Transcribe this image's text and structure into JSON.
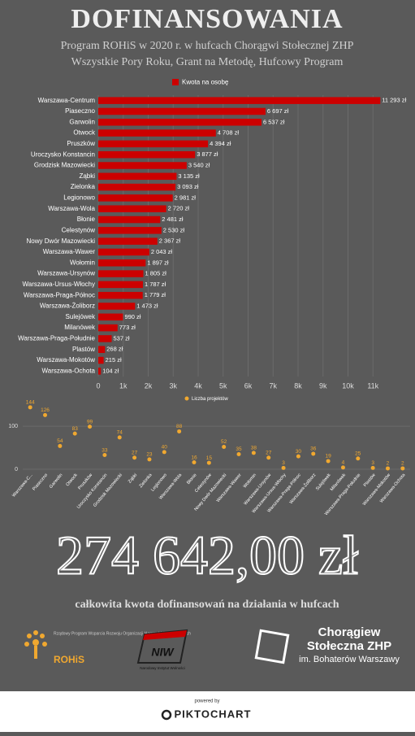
{
  "header": {
    "title": "DOFINANSOWANIA",
    "subtitle_lines": [
      "Program ROHiS w 2020 r. w hufcach Chorągwi Stołecznej ZHP",
      "Wszystkie Pory Roku, Grant na Metodę, Hufcowy Program"
    ]
  },
  "chart_data": [
    {
      "type": "bar",
      "orientation": "horizontal",
      "categories": [
        "Warszawa-Centrum",
        "Piaseczno",
        "Garwolin",
        "Otwock",
        "Pruszków",
        "Uroczysko Konstancin",
        "Grodzisk Mazowiecki",
        "Ząbki",
        "Zielonka",
        "Legionowo",
        "Warszawa-Wola",
        "Błonie",
        "Celestynów",
        "Nowy Dwór Mazowiecki",
        "Warszawa-Wawer",
        "Wołomin",
        "Warszawa-Ursynów",
        "Warszawa-Ursus-Włochy",
        "Warszawa-Praga-Północ",
        "Warszawa-Żoliborz",
        "Sulejówek",
        "Milanówek",
        "Warszawa-Praga-Południe",
        "Plastów",
        "Warszawa-Mokotów",
        "Warszawa-Ochota"
      ],
      "series": [
        {
          "name": "Kwota na osobę",
          "color": "#cc0000",
          "values": [
            11293,
            6697,
            6537,
            4708,
            4394,
            3877,
            3540,
            3135,
            3093,
            2981,
            2720,
            2481,
            2530,
            2367,
            2043,
            1897,
            1805,
            1787,
            1779,
            1473,
            990,
            773,
            537,
            268,
            215,
            104
          ],
          "value_labels": [
            "11 293 zł",
            "6 697 zł",
            "6 537 zł",
            "4 708 zł",
            "4 394 zł",
            "3 877 zł",
            "3 540 zł",
            "3 135 zł",
            "3 093 zł",
            "2 981 zł",
            "2 720 zł",
            "2 481 zł",
            "2 530 zł",
            "2 367 zł",
            "2 043 zł",
            "1 897 zł",
            "1 805 zł",
            "1 787 zł",
            "1 779 zł",
            "1 473 zł",
            "990 zł",
            "773 zł",
            "537 zł",
            "268 zł",
            "215 zł",
            "104 zł"
          ]
        }
      ],
      "xlim": [
        0,
        12000
      ],
      "xticks": [
        0,
        {
          "value": 1000,
          "label": "1k"
        },
        {
          "value": 2000,
          "label": "2k"
        },
        {
          "value": 3000,
          "label": "3k"
        },
        {
          "value": 4000,
          "label": "4k"
        },
        {
          "value": 5000,
          "label": "5k"
        },
        {
          "value": 6000,
          "label": "6k"
        },
        {
          "value": 7000,
          "label": "7k"
        },
        {
          "value": 8000,
          "label": "8k"
        },
        {
          "value": 9000,
          "label": "9k"
        },
        {
          "value": 10000,
          "label": "10k"
        },
        {
          "value": 11000,
          "label": "11k"
        }
      ],
      "grid": true,
      "legend": "top"
    },
    {
      "type": "dot",
      "categories": [
        "Warszawa-C...",
        "Piaseczno",
        "Garwolin",
        "Otwock",
        "Pruszków",
        "Uroczysko Konstancin",
        "Grodzisk Mazowiecki",
        "Ząbki",
        "Zielonka",
        "Legionowo",
        "Warszawa-Wola",
        "Błonie",
        "Celestynów",
        "Nowy Dwór Mazowiecki",
        "Warszawa-Wawer",
        "Wołomin",
        "Warszawa-Ursynów",
        "Warszawa-Ursus-Włochy",
        "Warszawa-Praga-Północ",
        "Warszawa-Żoliborz",
        "Sulejówek",
        "Milanówek",
        "Warszawa-Praga-Południe",
        "Plastów",
        "Warszawa-Mokotów",
        "Warszawa-Ochota"
      ],
      "series": [
        {
          "name": "Liczba projektów",
          "color": "#f0a830",
          "values": [
            144,
            126,
            54,
            83,
            99,
            33,
            74,
            27,
            23,
            40,
            88,
            16,
            15,
            52,
            35,
            38,
            27,
            3,
            30,
            36,
            19,
            4,
            25,
            3,
            2,
            2
          ]
        }
      ],
      "ylim": [
        0,
        155
      ],
      "yticks": [
        0,
        100
      ],
      "grid": true,
      "legend": "top"
    }
  ],
  "summary": {
    "amount": "274 642,00 zł",
    "caption": "całkowita kwota dofinansowań na działania w hufcach"
  },
  "logos": {
    "rohis_text": "Rządowy Program Wsparcia Rozwoju Organizacji Harcerskich i Skautowych",
    "rohis": "ROHiS",
    "niw": "NIW",
    "niw_text": "Narodowy Instytut Wolności",
    "zhp_line1": "Chorągiew",
    "zhp_line2": "Stołeczna ZHP",
    "zhp_line3": "im. Bohaterów Warszawy"
  },
  "footer": {
    "powered_by": "powered by",
    "brand": "PIKTOCHART"
  }
}
